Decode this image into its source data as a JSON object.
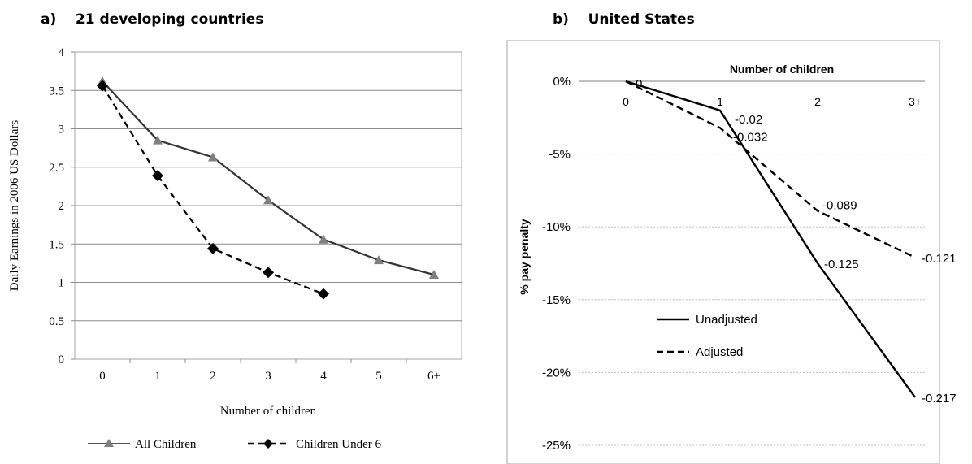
{
  "panels": {
    "a": {
      "title": "a)    21 developing countries"
    },
    "b": {
      "title": "b)    United States"
    }
  },
  "chart_data": [
    {
      "type": "line",
      "categories": [
        "0",
        "1",
        "2",
        "3",
        "4",
        "5",
        "6+"
      ],
      "series": [
        {
          "name": "All Children",
          "values": [
            3.62,
            2.85,
            2.63,
            2.07,
            1.56,
            1.29,
            1.1
          ],
          "color": "#808080",
          "marker": "triangle",
          "dash": "solid"
        },
        {
          "name": "Children Under 6",
          "values": [
            3.56,
            2.39,
            1.44,
            1.13,
            0.85,
            null,
            null
          ],
          "color": "#000000",
          "marker": "diamond",
          "dash": "dashed"
        }
      ],
      "xlabel": "Number of children",
      "ylabel": "Daily Earnings in 2006 US Dollars",
      "ylim": [
        0,
        4
      ],
      "yticks": [
        "0",
        "0.5",
        "1",
        "1.5",
        "2",
        "2.5",
        "3",
        "3.5",
        "4"
      ],
      "grid": true,
      "legend": "bottom"
    },
    {
      "type": "line",
      "categories": [
        "0",
        "1",
        "2",
        "3+"
      ],
      "series": [
        {
          "name": "Unadjusted",
          "values": [
            0,
            -0.02,
            -0.125,
            -0.217
          ],
          "labels": [
            "0",
            "-0.02",
            "-0.125",
            "-0.217"
          ],
          "dash": "solid"
        },
        {
          "name": "Adjusted",
          "values": [
            0,
            -0.032,
            -0.089,
            -0.121
          ],
          "labels": [
            "",
            "-0.032",
            "-0.089",
            "-0.121"
          ],
          "dash": "dashed"
        }
      ],
      "xlabel": "Number of children",
      "ylabel": "% pay penalty",
      "ylim": [
        -0.25,
        0
      ],
      "yticks": [
        "0%",
        "-5%",
        "-10%",
        "-15%",
        "-20%",
        "-25%"
      ],
      "grid": true,
      "legend": "inside-left"
    }
  ]
}
